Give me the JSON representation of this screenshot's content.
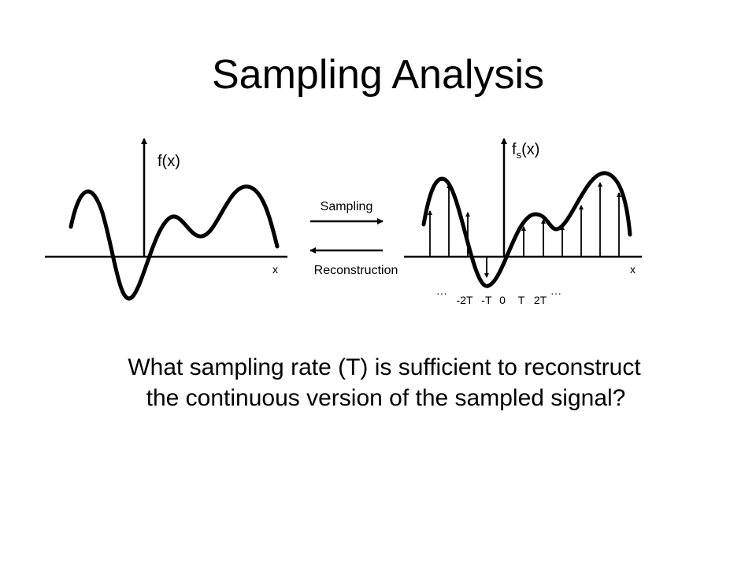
{
  "header": {
    "title": "Sampling Analysis"
  },
  "left_plot": {
    "y_label": "f(x)",
    "x_label": "x"
  },
  "arrows": {
    "sampling": "Sampling",
    "reconstruction": "Reconstruction"
  },
  "right_plot": {
    "y_label_base": "f",
    "y_label_subscript": "s",
    "y_label_arg": "(x)",
    "x_label": "x",
    "ticks": [
      "···",
      "-2T",
      "-T",
      "0",
      "T",
      "2T",
      "···"
    ]
  },
  "question": {
    "lines": [
      "What sampling rate (T) is sufficient to reconstruct",
      "the continuous version of the sampled signal?"
    ]
  }
}
